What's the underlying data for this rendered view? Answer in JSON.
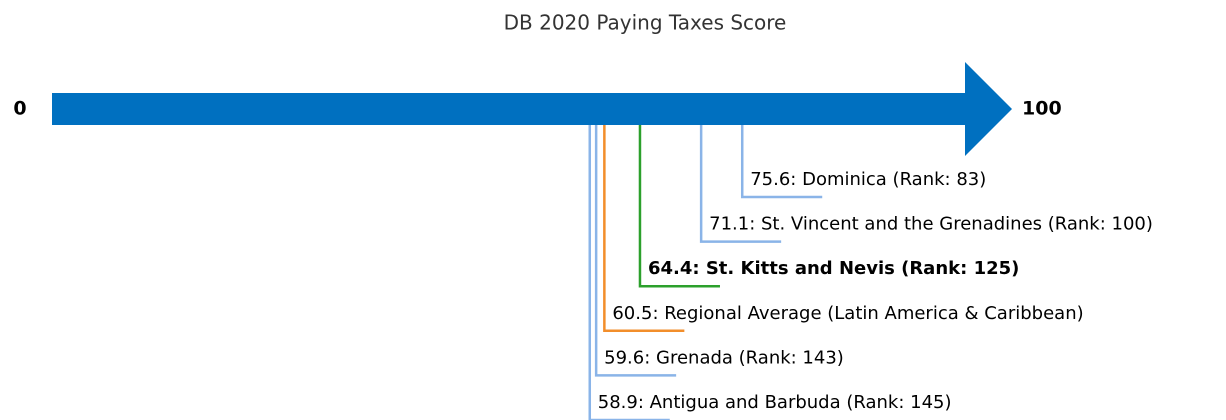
{
  "chart_data": {
    "type": "number-line",
    "title": "DB 2020 Paying Taxes Score",
    "xlim": [
      0,
      100
    ],
    "xticks": [
      0,
      100
    ],
    "arrow_color": "#0070c0",
    "labels": [
      "75.6: Dominica (Rank: 83)",
      "71.1: St. Vincent and the Grenadines (Rank: 100)",
      "64.4: St. Kitts and Nevis (Rank: 125)",
      "60.5: Regional Average (Latin America & Caribbean)",
      "59.6: Grenada (Rank: 143)",
      "58.9: Antigua and Barbuda (Rank: 145)"
    ],
    "values": [
      75.6,
      71.1,
      64.4,
      60.5,
      59.6,
      58.9
    ],
    "colors": [
      "#8ab4e8",
      "#8ab4e8",
      "#2ca02c",
      "#f28e2b",
      "#8ab4e8",
      "#8ab4e8"
    ],
    "bold": [
      false,
      false,
      true,
      false,
      false,
      false
    ]
  }
}
